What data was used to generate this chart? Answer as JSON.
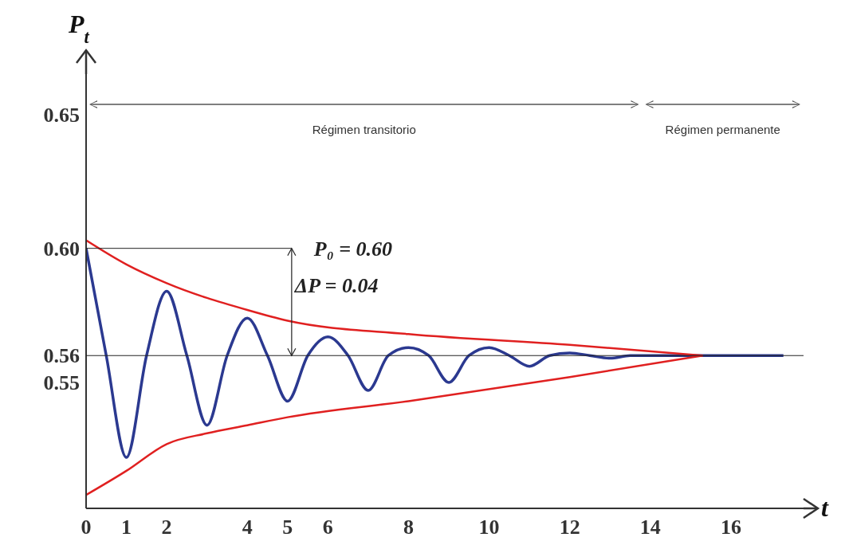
{
  "chart_data": {
    "type": "line",
    "xlabel": "t",
    "ylabel": "P$_{t}$",
    "xlim": [
      0,
      17.8
    ],
    "ylim": [
      0.503,
      0.665
    ],
    "xticks": [
      0,
      1,
      2,
      4,
      5,
      6,
      8,
      10,
      12,
      14,
      16
    ],
    "yticks": [
      0.55,
      0.56,
      {
        "value": 0.6,
        "label": "0.60"
      },
      0.65
    ],
    "grid": false,
    "marker": "none",
    "line_style": "solid",
    "series": [
      {
        "color": "#2b3990",
        "x": [
          0,
          0.5,
          1,
          1.5,
          2,
          2.5,
          3,
          3.5,
          4,
          4.5,
          5,
          5.5,
          6,
          6.5,
          7,
          7.5,
          8,
          8.5,
          9,
          9.5,
          10,
          10.5,
          11,
          11.5,
          12,
          12.5,
          13,
          13.5,
          14,
          15,
          16,
          17.3
        ],
        "values": [
          0.6,
          0.56,
          0.522,
          0.56,
          0.584,
          0.56,
          0.534,
          0.56,
          0.574,
          0.56,
          0.543,
          0.56,
          0.567,
          0.56,
          0.547,
          0.56,
          0.563,
          0.56,
          0.55,
          0.56,
          0.563,
          0.56,
          0.556,
          0.56,
          0.561,
          0.56,
          0.559,
          0.56,
          0.56,
          0.56,
          0.56,
          0.56
        ]
      },
      {
        "color": "#e02020",
        "x": [
          0,
          1,
          2,
          4,
          5,
          8,
          12,
          15.3
        ],
        "values": [
          0.603,
          0.594,
          0.587,
          0.577,
          0.573,
          0.568,
          0.564,
          0.56
        ]
      },
      {
        "color": "#e02020",
        "x": [
          0,
          1,
          2,
          3,
          4,
          5,
          8,
          12,
          15.3
        ],
        "values": [
          0.508,
          0.517,
          0.527,
          0.531,
          0.534,
          0.537,
          0.543,
          0.552,
          0.56
        ]
      }
    ],
    "ref_lines": [
      {
        "axis": "y",
        "value": 0.6,
        "label": "P₀ = 0.60"
      },
      {
        "axis": "y",
        "value": 0.56
      }
    ],
    "annotations": [
      {
        "text": "ΔP = 0.04",
        "x": 5.1,
        "y": 0.56
      },
      "Régimen transitorio",
      "Régimen permanente"
    ]
  }
}
